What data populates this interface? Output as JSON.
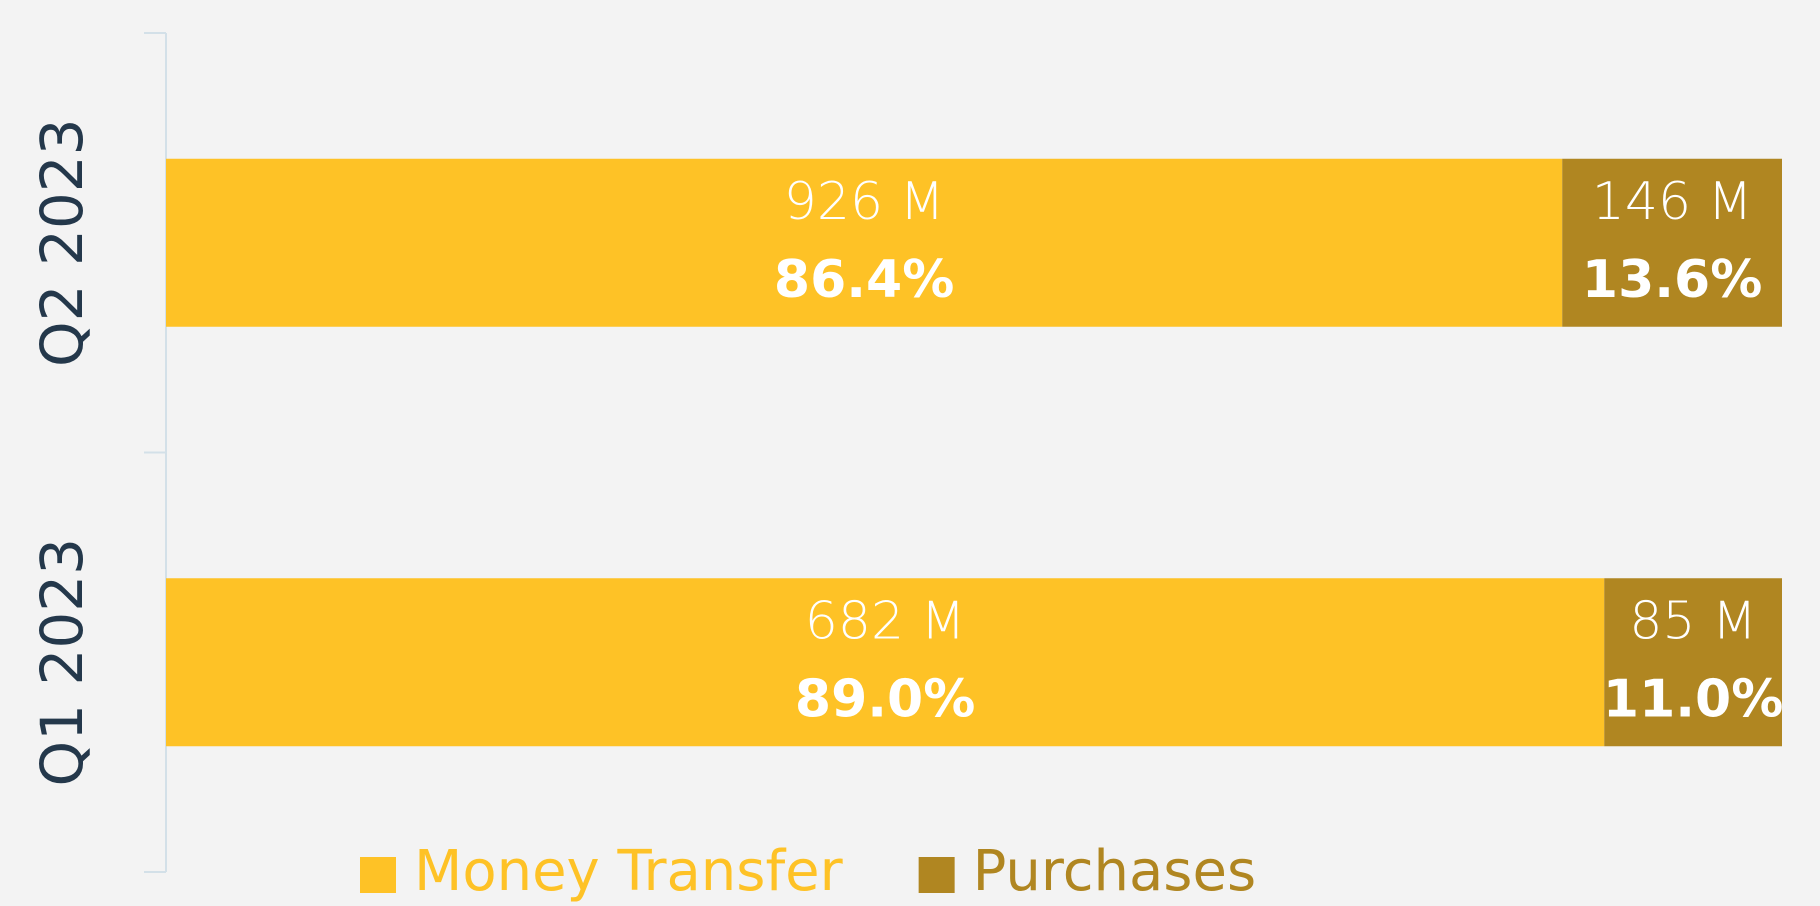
{
  "chart_data": {
    "type": "stacked_bar_horizontal",
    "categories": [
      "Q2 2023",
      "Q1 2023"
    ],
    "xlim": [
      0,
      100
    ],
    "series": [
      {
        "name": "Money Transfer",
        "color": "#fec226",
        "values": [
          86.4,
          89.0
        ],
        "value_labels": [
          "86.4%",
          "89.0%"
        ],
        "amounts": [
          926,
          682
        ],
        "amount_labels": [
          "926 M",
          "682 M"
        ]
      },
      {
        "name": "Purchases",
        "color": "#b08621",
        "values": [
          13.6,
          11.0
        ],
        "value_labels": [
          "13.6%",
          "11.0%"
        ],
        "amounts": [
          146,
          85
        ],
        "amount_labels": [
          "146 M",
          "85 M"
        ]
      }
    ],
    "legend": "bottom"
  }
}
